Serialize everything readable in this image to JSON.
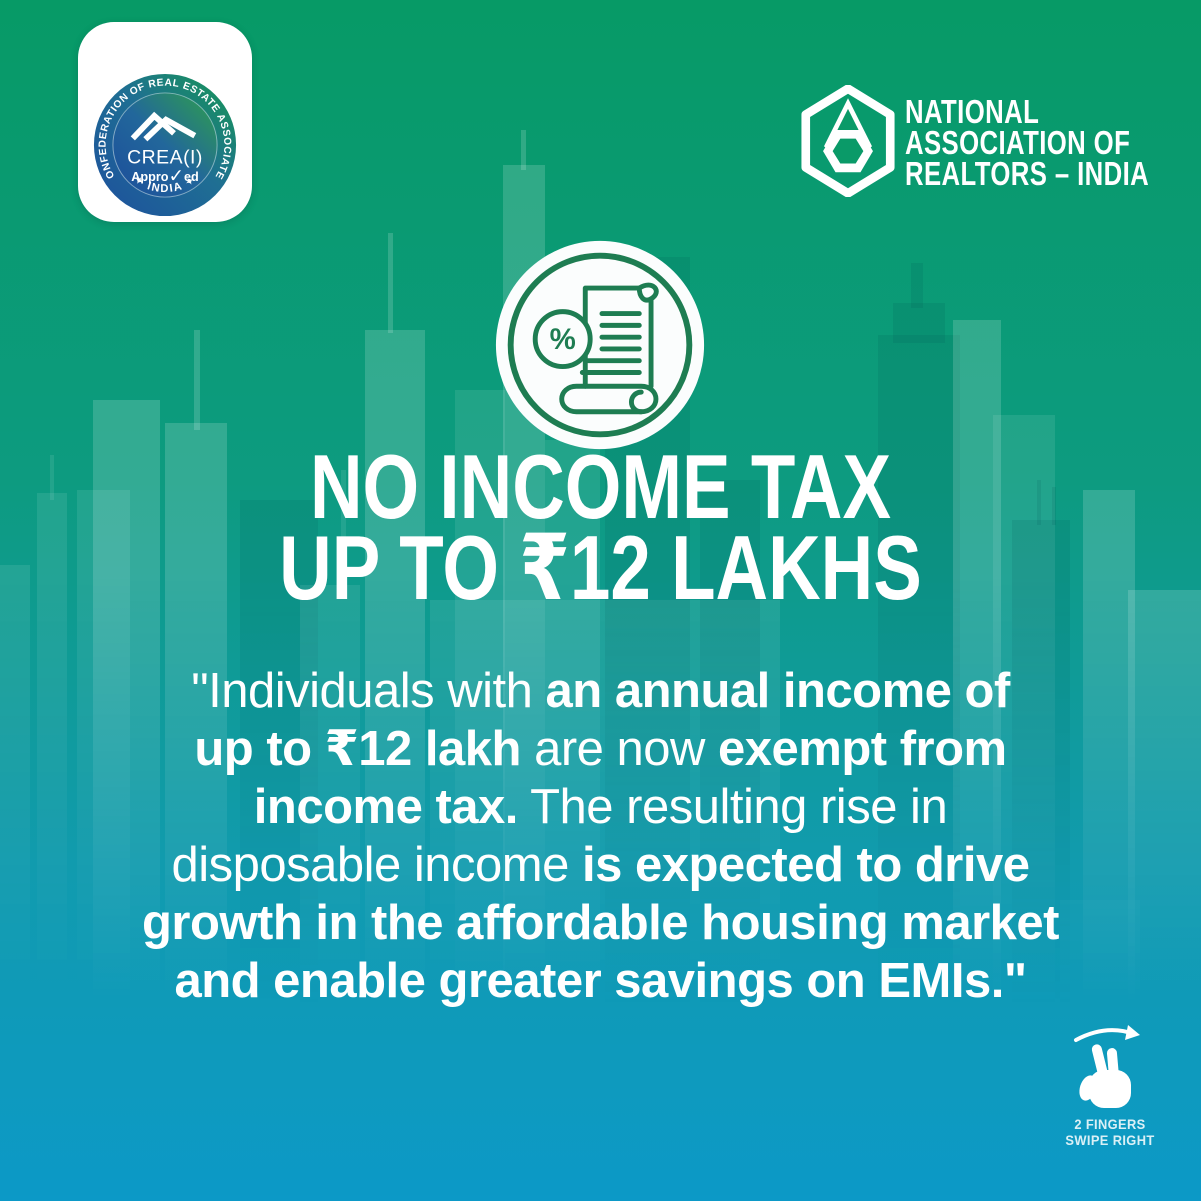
{
  "colors": {
    "bg_top": "#079a66",
    "bg_mid": "#0f9b8e",
    "bg_bottom": "#0c99c7",
    "icon_green": "#1e7d52",
    "badge_blue": "#1d4f9e",
    "badge_green": "#2f9e49"
  },
  "crea_badge": {
    "ring_text": "CONFEDERATION OF REAL ESTATE ASSOCIATES",
    "bottom_text": "✦  INDIA  ✦",
    "org": "CREA(I)",
    "approved_pre": "Appro",
    "approved_check": "✓",
    "approved_post": "ed"
  },
  "nar_logo": {
    "line1": "NATIONAL",
    "line2": "ASSOCIATION OF",
    "line3": "REALTORS – INDIA"
  },
  "tax_icon": {
    "percent": "%"
  },
  "headline": {
    "line1": "NO INCOME TAX",
    "line2": "UP TO ₹12 LAKHS"
  },
  "quote": {
    "lines": [
      [
        {
          "t": "\"Individuals with ",
          "b": false
        },
        {
          "t": "an annual income of",
          "b": true
        }
      ],
      [
        {
          "t": "up to ₹12 lakh",
          "b": true
        },
        {
          "t": " are now ",
          "b": false
        },
        {
          "t": "exempt from",
          "b": true
        }
      ],
      [
        {
          "t": "income tax.",
          "b": true
        },
        {
          "t": " The resulting rise in",
          "b": false
        }
      ],
      [
        {
          "t": "disposable income ",
          "b": false
        },
        {
          "t": "is expected to drive",
          "b": true
        }
      ],
      [
        {
          "t": "growth in the affordable housing market",
          "b": true
        }
      ],
      [
        {
          "t": "and enable greater savings on EMIs.\"",
          "b": true
        }
      ]
    ]
  },
  "swipe_hint": {
    "line1": "2 FINGERS",
    "line2": "SWIPE RIGHT"
  }
}
